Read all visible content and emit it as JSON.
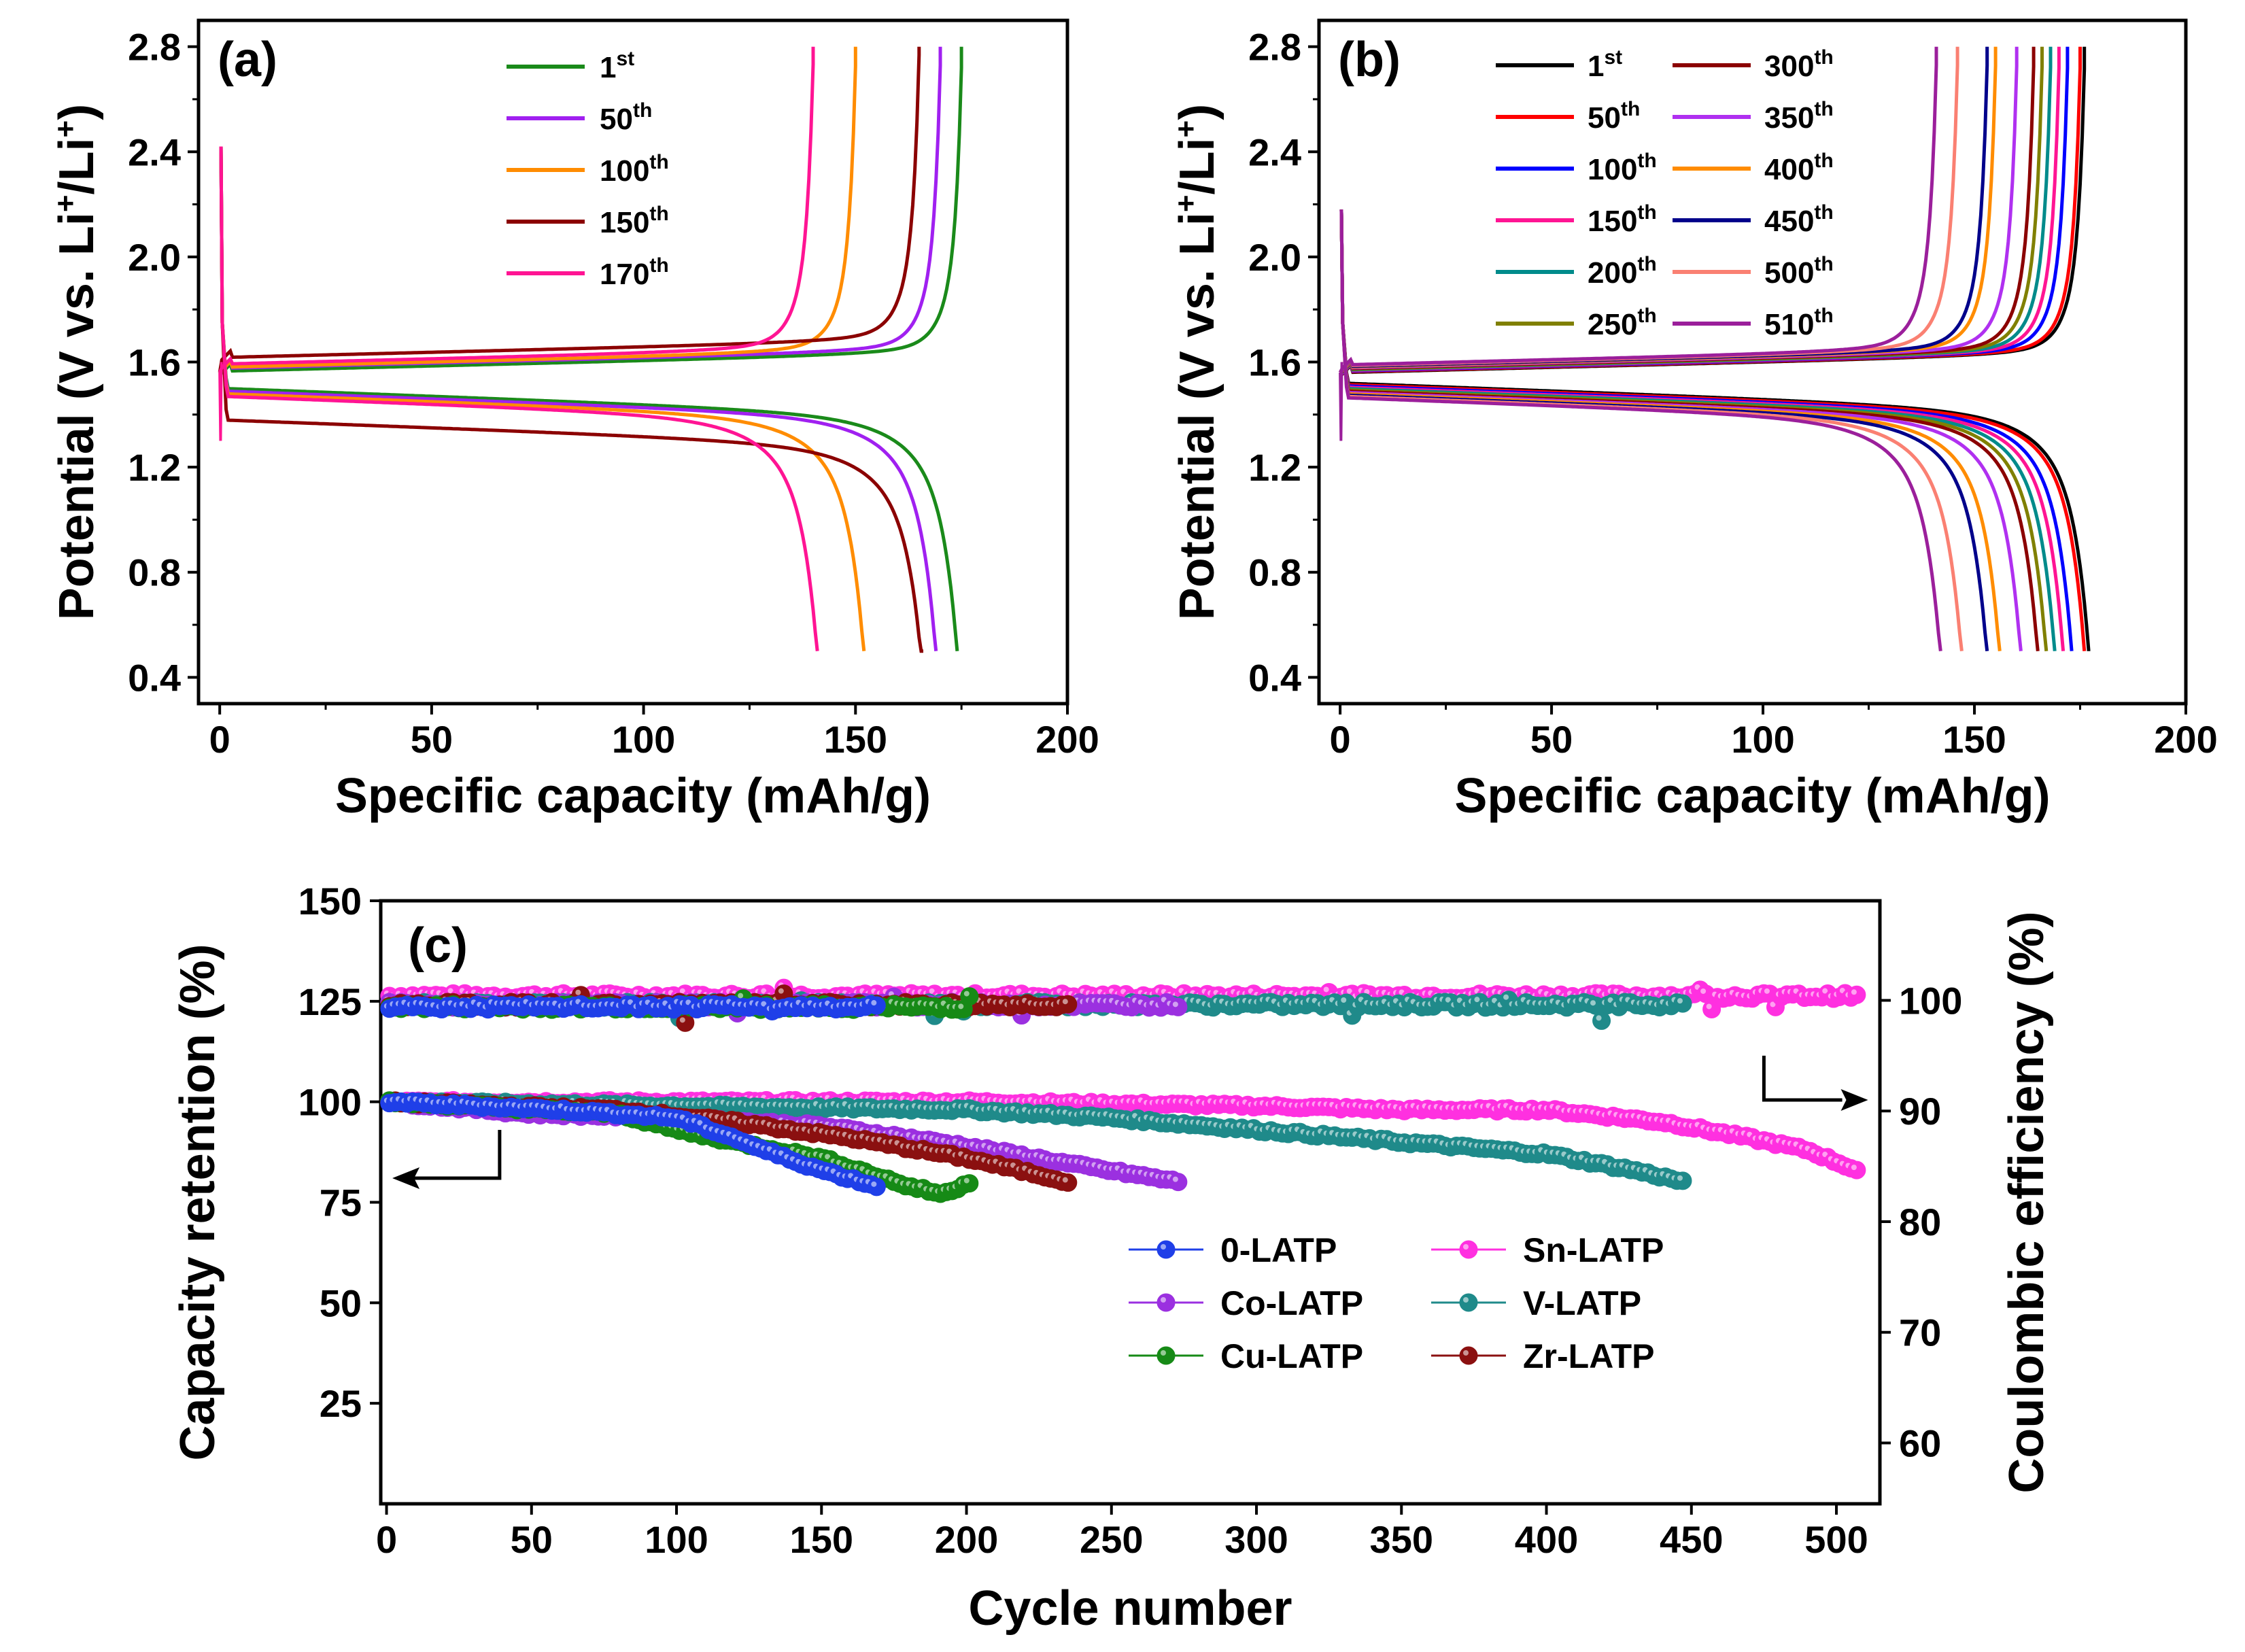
{
  "figure": {
    "panel_labels": [
      "(a)",
      "(b)",
      "(c)"
    ]
  },
  "chart_data": [
    {
      "type": "line",
      "panel": "(a)",
      "title": "",
      "xlabel": "Specific capacity (mAh/g)",
      "ylabel": "Potential (V vs. Li",
      "ylabel_sup": "+",
      "ylabel_suffix": "/Li",
      "ylabel_close": ")",
      "xlim": [
        -5,
        200
      ],
      "ylim": [
        0.3,
        2.9
      ],
      "xticks": [
        0,
        50,
        100,
        150,
        200
      ],
      "yticks": [
        0.4,
        0.8,
        1.2,
        1.6,
        2.0,
        2.4,
        2.8
      ],
      "ytick_labels": [
        "0.4",
        "0.8",
        "1.2",
        "1.6",
        "2.0",
        "2.4",
        "2.8"
      ],
      "legend": "top-center",
      "series": [
        {
          "name": "1",
          "suffix": "st",
          "color": "#1a8a1a",
          "charge_capacity": 175,
          "discharge_capacity": 174,
          "charge_plateau": 1.6,
          "discharge_plateau": 1.5
        },
        {
          "name": "50",
          "suffix": "th",
          "color": "#a020f0",
          "charge_capacity": 170,
          "discharge_capacity": 169,
          "charge_plateau": 1.61,
          "discharge_plateau": 1.49
        },
        {
          "name": "100",
          "suffix": "th",
          "color": "#ff8c00",
          "charge_capacity": 150,
          "discharge_capacity": 152,
          "charge_plateau": 1.61,
          "discharge_plateau": 1.48
        },
        {
          "name": "150",
          "suffix": "th",
          "color": "#8b0000",
          "charge_capacity": 165,
          "discharge_capacity": 166,
          "charge_plateau": 1.65,
          "discharge_plateau": 1.38
        },
        {
          "name": "170",
          "suffix": "th",
          "color": "#ff1493",
          "charge_capacity": 140,
          "discharge_capacity": 141,
          "charge_plateau": 1.62,
          "discharge_plateau": 1.47
        }
      ]
    },
    {
      "type": "line",
      "panel": "(b)",
      "title": "",
      "xlabel": "Specific capacity (mAh/g)",
      "ylabel": "Potential (V vs. Li",
      "ylabel_sup": "+",
      "ylabel_suffix": "/Li",
      "ylabel_close": ")",
      "xlim": [
        -5,
        200
      ],
      "ylim": [
        0.3,
        2.9
      ],
      "xticks": [
        0,
        50,
        100,
        150,
        200
      ],
      "yticks": [
        0.4,
        0.8,
        1.2,
        1.6,
        2.0,
        2.4,
        2.8
      ],
      "ytick_labels": [
        "0.4",
        "0.8",
        "1.2",
        "1.6",
        "2.0",
        "2.4",
        "2.8"
      ],
      "legend": "top-left",
      "series": [
        {
          "name": "1",
          "suffix": "st",
          "color": "#000000",
          "charge_capacity": 176,
          "discharge_capacity": 177
        },
        {
          "name": "50",
          "suffix": "th",
          "color": "#ff0000",
          "charge_capacity": 175,
          "discharge_capacity": 176
        },
        {
          "name": "100",
          "suffix": "th",
          "color": "#0000ff",
          "charge_capacity": 172,
          "discharge_capacity": 173
        },
        {
          "name": "150",
          "suffix": "th",
          "color": "#ff1493",
          "charge_capacity": 170,
          "discharge_capacity": 171
        },
        {
          "name": "200",
          "suffix": "th",
          "color": "#008b8b",
          "charge_capacity": 168,
          "discharge_capacity": 169
        },
        {
          "name": "250",
          "suffix": "th",
          "color": "#808000",
          "charge_capacity": 166,
          "discharge_capacity": 167
        },
        {
          "name": "300",
          "suffix": "th",
          "color": "#8b0000",
          "charge_capacity": 164,
          "discharge_capacity": 165
        },
        {
          "name": "350",
          "suffix": "th",
          "color": "#b030f0",
          "charge_capacity": 160,
          "discharge_capacity": 161
        },
        {
          "name": "400",
          "suffix": "th",
          "color": "#ff8c00",
          "charge_capacity": 155,
          "discharge_capacity": 156
        },
        {
          "name": "450",
          "suffix": "th",
          "color": "#00008b",
          "charge_capacity": 153,
          "discharge_capacity": 153
        },
        {
          "name": "500",
          "suffix": "th",
          "color": "#fa8072",
          "charge_capacity": 146,
          "discharge_capacity": 147
        },
        {
          "name": "510",
          "suffix": "th",
          "color": "#9b1f9b",
          "charge_capacity": 141,
          "discharge_capacity": 142
        }
      ]
    },
    {
      "type": "scatter",
      "panel": "(c)",
      "title": "",
      "xlabel": "Cycle number",
      "ylabel": "Capacity retention (%)",
      "ylabel_right": "Coulombic efficiency (%)",
      "xlim": [
        -2,
        515
      ],
      "ylim": [
        0,
        150
      ],
      "ylim_right": [
        54.5,
        109
      ],
      "xticks": [
        0,
        50,
        100,
        150,
        200,
        250,
        300,
        350,
        400,
        450,
        500
      ],
      "yticks": [
        25,
        50,
        75,
        100,
        125,
        150
      ],
      "yticks_right": [
        60,
        70,
        80,
        90,
        100
      ],
      "legend": "bottom-right",
      "series": [
        {
          "name": "0-LATP",
          "color": "#1f3fe8",
          "cycles": 169,
          "retention": [
            [
              0,
              100
            ],
            [
              60,
              98
            ],
            [
              100,
              96
            ],
            [
              120,
              91
            ],
            [
              130,
              88
            ],
            [
              150,
              83
            ],
            [
              169,
              79
            ]
          ],
          "efficiency_mean": 99.4
        },
        {
          "name": "Co-LATP",
          "color": "#9b30e0",
          "cycles": 274,
          "retention": [
            [
              0,
              100
            ],
            [
              50,
              97
            ],
            [
              100,
              96
            ],
            [
              150,
              94
            ],
            [
              200,
              89
            ],
            [
              240,
              84
            ],
            [
              274,
              80
            ]
          ],
          "efficiency_mean": 99.6
        },
        {
          "name": "Cu-LATP",
          "color": "#168a16",
          "cycles": 201,
          "retention": [
            [
              0,
              100
            ],
            [
              80,
              97
            ],
            [
              100,
              93
            ],
            [
              120,
              90
            ],
            [
              150,
              86
            ],
            [
              180,
              79
            ],
            [
              192,
              77
            ],
            [
              201,
              80
            ]
          ],
          "efficiency_mean": 99.4
        },
        {
          "name": "Sn-LATP",
          "color": "#ff30e0",
          "cycles": 507,
          "retention": [
            [
              0,
              100
            ],
            [
              100,
              100
            ],
            [
              200,
              100
            ],
            [
              300,
              99
            ],
            [
              350,
              98
            ],
            [
              400,
              98
            ],
            [
              440,
              95
            ],
            [
              470,
              91
            ],
            [
              490,
              88
            ],
            [
              507,
              83
            ]
          ],
          "efficiency_mean": 100.4
        },
        {
          "name": "V-LATP",
          "color": "#1f8a8a",
          "cycles": 448,
          "retention": [
            [
              0,
              100
            ],
            [
              100,
              99
            ],
            [
              200,
              98
            ],
            [
              250,
              96
            ],
            [
              300,
              93
            ],
            [
              350,
              90
            ],
            [
              400,
              87
            ],
            [
              430,
              83
            ],
            [
              448,
              80
            ]
          ],
          "efficiency_mean": 99.6
        },
        {
          "name": "Zr-LATP",
          "color": "#8b1010",
          "cycles": 236,
          "retention": [
            [
              0,
              100
            ],
            [
              80,
              98
            ],
            [
              120,
              95
            ],
            [
              160,
              91
            ],
            [
              200,
              86
            ],
            [
              236,
              80
            ]
          ],
          "efficiency_mean": 99.6
        }
      ]
    }
  ]
}
